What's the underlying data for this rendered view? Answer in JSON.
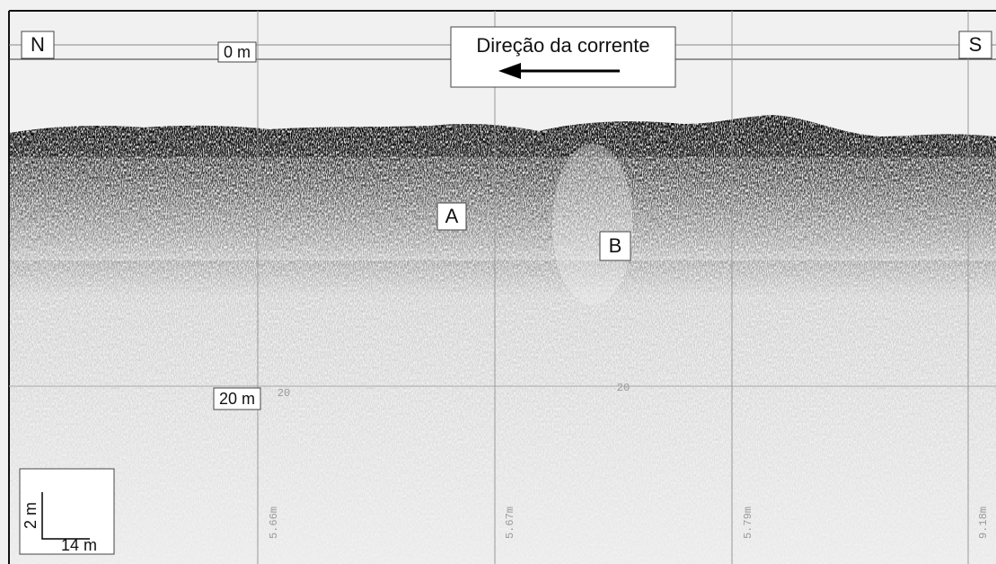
{
  "labels": {
    "north": "N",
    "south": "S",
    "depth_top": "0 m",
    "depth_20": "20 m",
    "current": "Direção da corrente",
    "unit_a": "A",
    "unit_b": "B",
    "scale_vertical": "2 m",
    "scale_horizontal": "14 m"
  },
  "record_marks": {
    "fix_1": "5.66m",
    "fix_2": "5.67m",
    "fix_3": "5.79m",
    "fix_4": "9.18m",
    "depth_mark_1": "20",
    "depth_mark_2": "20"
  }
}
